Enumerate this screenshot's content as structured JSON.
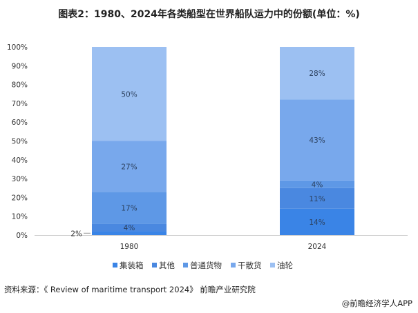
{
  "chart_data": {
    "type": "bar",
    "stacked": true,
    "title": "图表2：1980、2024年各类船型在世界船队运力中的份额(单位：%)",
    "categories": [
      "1980",
      "2024"
    ],
    "series": [
      {
        "name": "集装箱",
        "values": [
          2,
          14
        ],
        "color": "#3a84e6"
      },
      {
        "name": "其他",
        "values": [
          4,
          11
        ],
        "color": "#4a88e0"
      },
      {
        "name": "普通货物",
        "values": [
          17,
          4
        ],
        "color": "#5e98e6"
      },
      {
        "name": "干散货",
        "values": [
          27,
          43
        ],
        "color": "#78a8ec"
      },
      {
        "name": "油轮",
        "values": [
          50,
          28
        ],
        "color": "#9cc0f2"
      }
    ],
    "ylim": [
      0,
      100
    ],
    "yticks": [
      "0%",
      "10%",
      "20%",
      "30%",
      "40%",
      "50%",
      "60%",
      "70%",
      "80%",
      "90%",
      "100%"
    ],
    "grid": false,
    "legend": "bottom"
  },
  "footer": {
    "source": "资料来源：《 Review of maritime transport 2024》 前瞻产业研究院",
    "credit": "@前瞻经济学人APP"
  }
}
